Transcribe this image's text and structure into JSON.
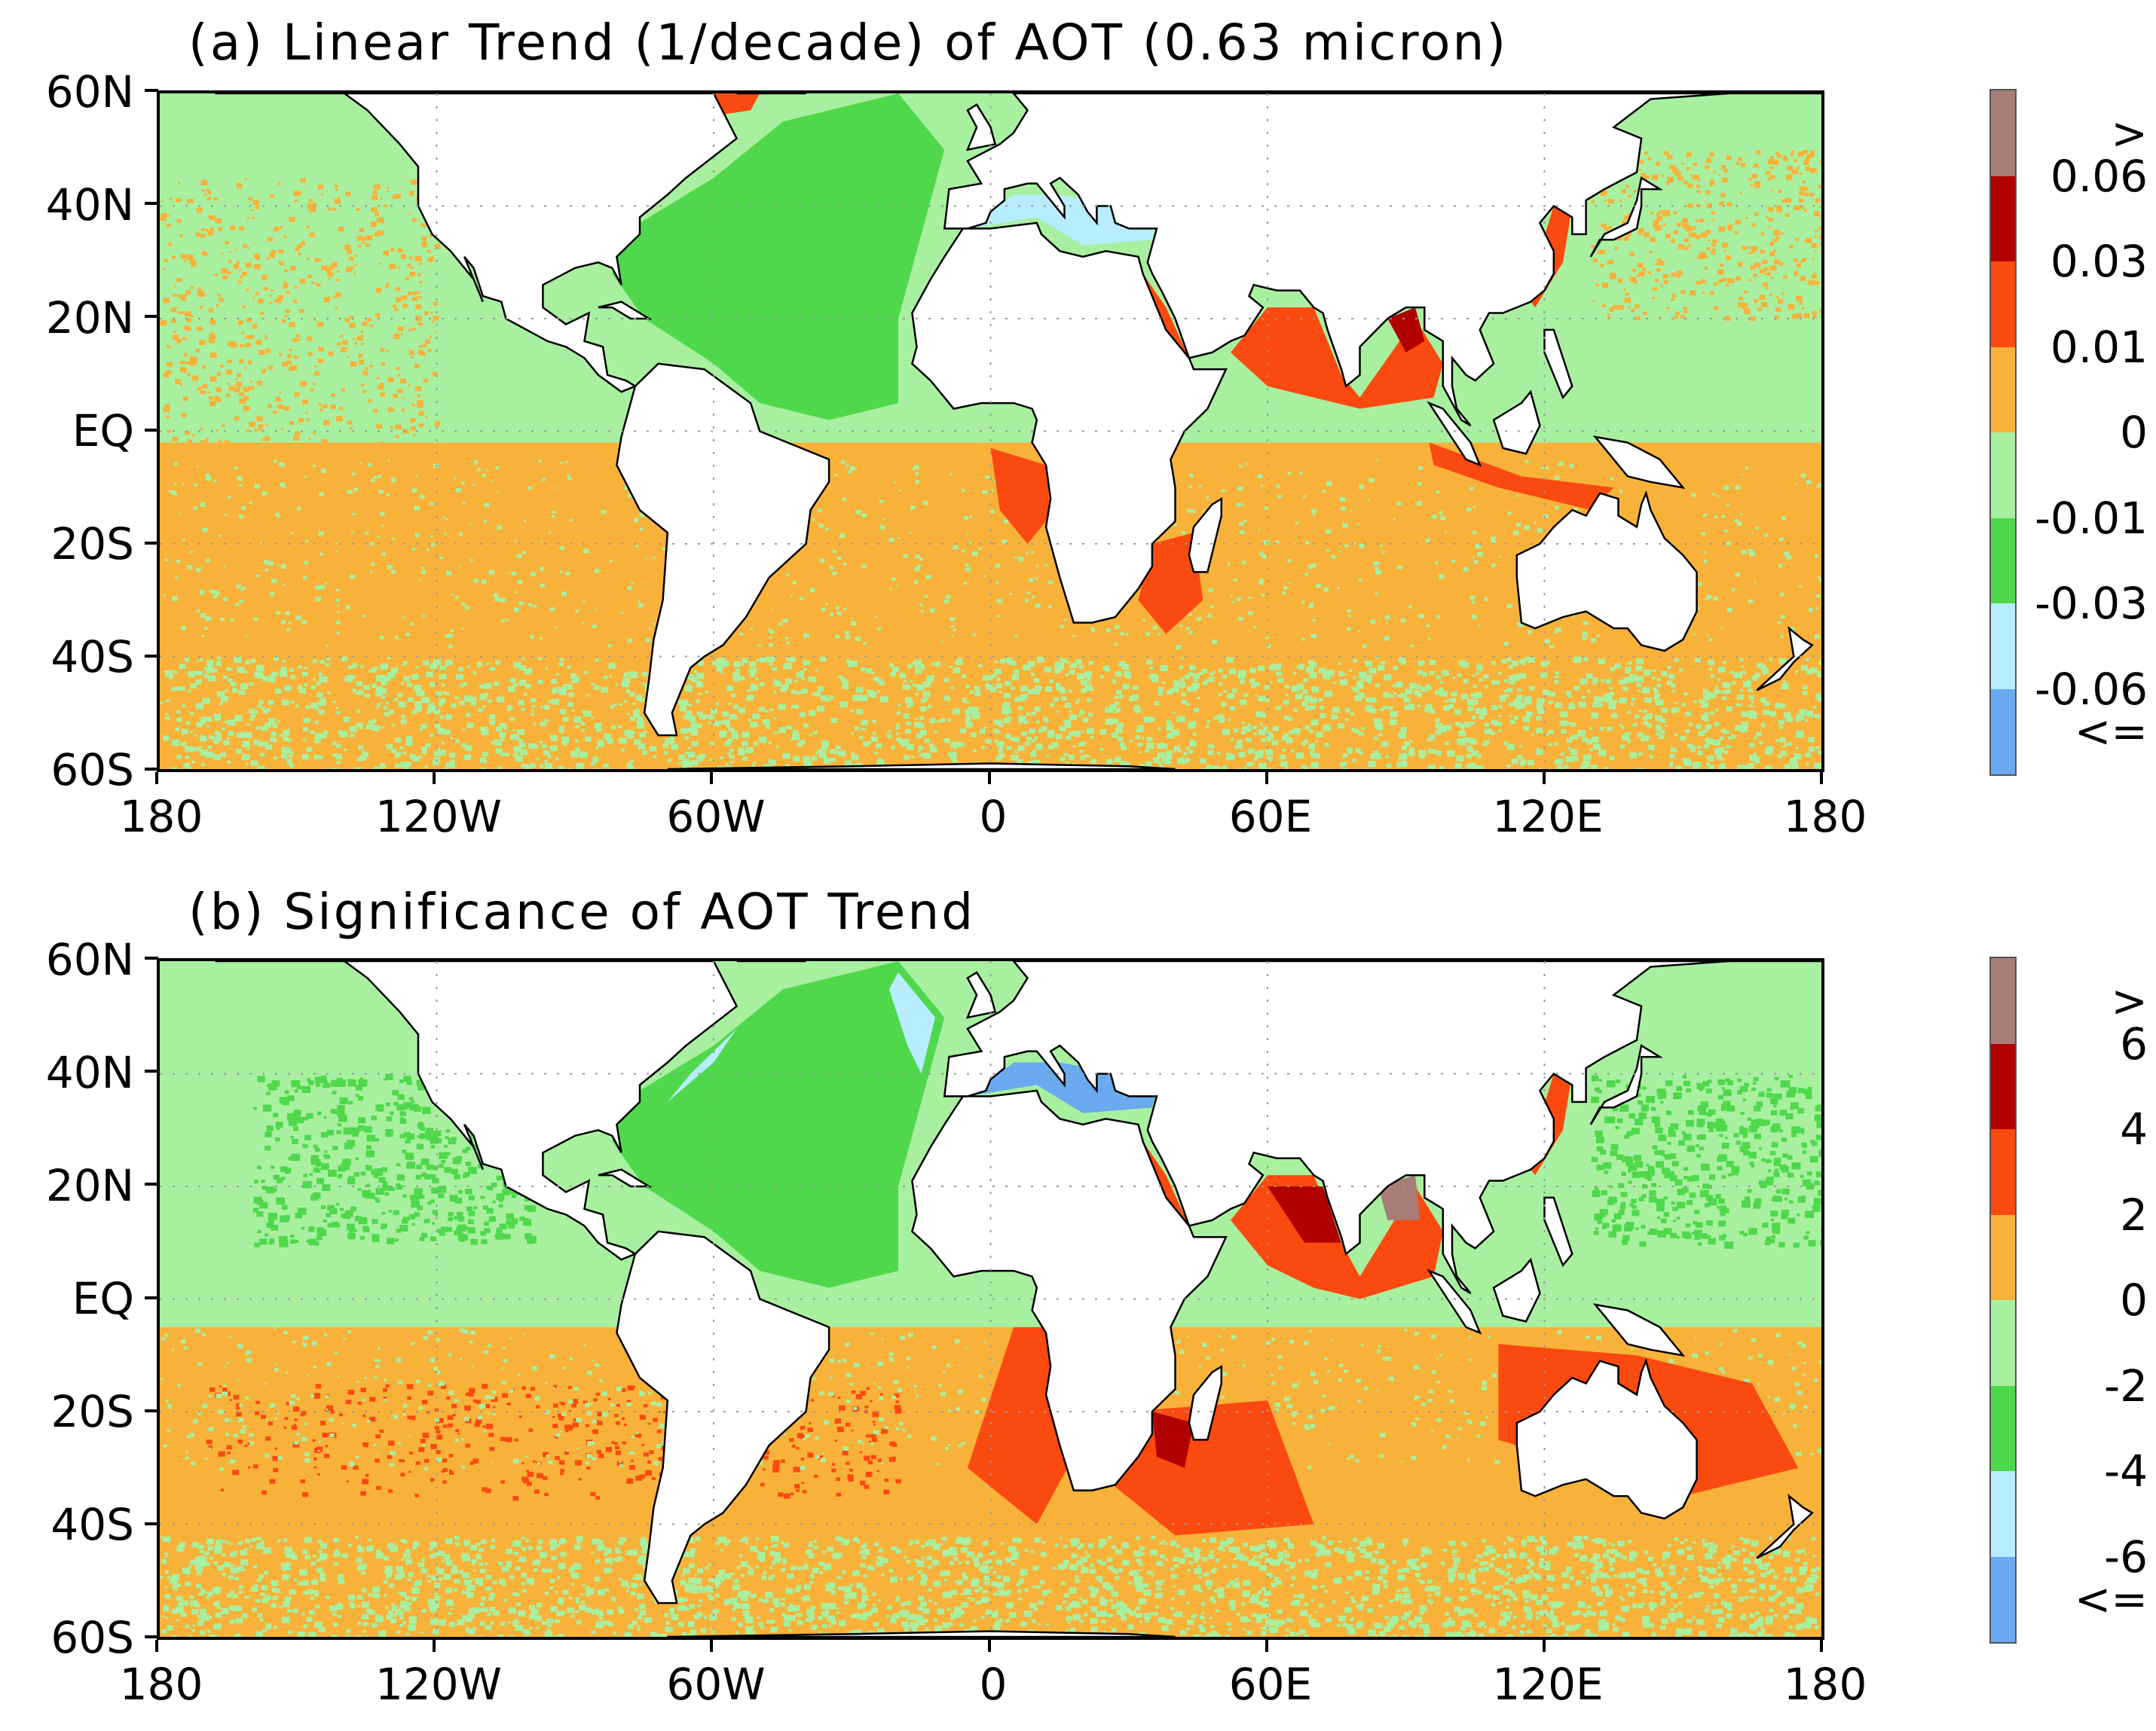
{
  "panels": [
    {
      "id": "a",
      "title": "(a) Linear Trend (1/decade) of AOT (0.63 micron)",
      "colorbar": {
        "colors": [
          "#6aaaf0",
          "#b8ecff",
          "#4fd84b",
          "#a8f0a0",
          "#f8b23a",
          "#fb4a0f",
          "#b00000",
          "#a77d76"
        ],
        "labels": [
          "<=",
          "-0.06",
          "-0.03",
          "-0.01",
          "0",
          "0.01",
          "0.03",
          "0.06",
          ">"
        ]
      }
    },
    {
      "id": "b",
      "title": "(b) Significance of AOT Trend",
      "colorbar": {
        "colors": [
          "#6aaaf0",
          "#b8ecff",
          "#4fd84b",
          "#a8f0a0",
          "#f8b23a",
          "#fb4a0f",
          "#b00000",
          "#a77d76"
        ],
        "labels": [
          "<=",
          "-6",
          "-4",
          "-2",
          "0",
          "2",
          "4",
          "6",
          ">"
        ]
      }
    }
  ],
  "axes": {
    "lat_labels": [
      "60N",
      "40N",
      "20N",
      "EQ",
      "20S",
      "40S",
      "60S"
    ],
    "lon_labels": [
      "180",
      "120W",
      "60W",
      "0",
      "60E",
      "120E",
      "180"
    ]
  },
  "colors": {
    "land": "#ffffff",
    "ocean_green_light": "#a8f0a0",
    "ocean_green": "#4fd84b",
    "ocean_orange": "#f8b23a",
    "ocean_red": "#fb4a0f",
    "ocean_darkred": "#b00000",
    "ocean_brown": "#a77d76",
    "ocean_lightblue": "#b8ecff",
    "ocean_blue": "#6aaaf0"
  }
}
